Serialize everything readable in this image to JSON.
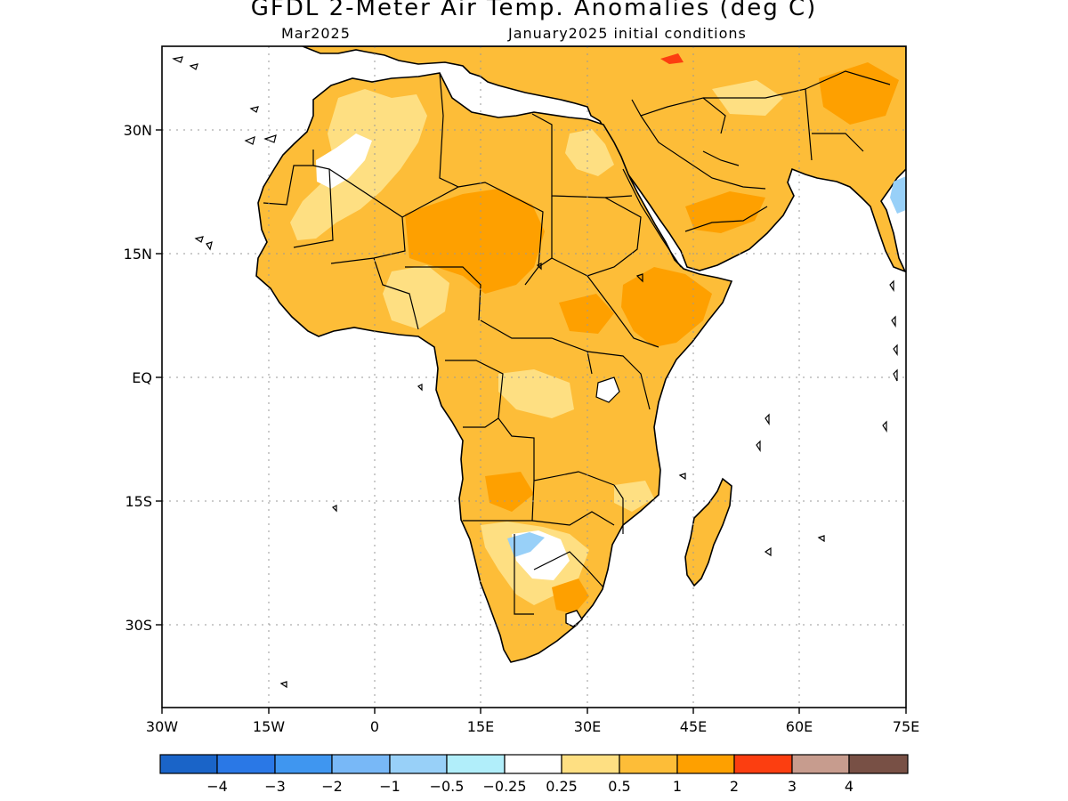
{
  "header": {
    "title": "GFDL 2-Meter Air Temp. Anomalies (deg C)",
    "valid_month": "Mar2025",
    "init_conditions": "January2025 initial conditions"
  },
  "map": {
    "lon_range": [
      -30,
      75
    ],
    "lat_range": [
      -40,
      40
    ],
    "grid": "dotted",
    "lon_ticks": [
      "30W",
      "15W",
      "0",
      "15E",
      "30E",
      "45E",
      "60E",
      "75E"
    ],
    "lat_ticks": [
      "30N",
      "15N",
      "EQ",
      "15S",
      "30S"
    ]
  },
  "legend": {
    "colors": [
      "#1a64c8",
      "#2a78e6",
      "#3f96f0",
      "#78b8f7",
      "#98d0f8",
      "#b1eefa",
      "#ffffff",
      "#fedf82",
      "#fdbd38",
      "#fea000",
      "#fc3e10",
      "#c79c8e",
      "#785045"
    ],
    "labels": [
      "−4",
      "−3",
      "−2",
      "−1",
      "−0.5",
      "−0.25",
      "0.25",
      "0.5",
      "1",
      "2",
      "3",
      "4"
    ]
  }
}
